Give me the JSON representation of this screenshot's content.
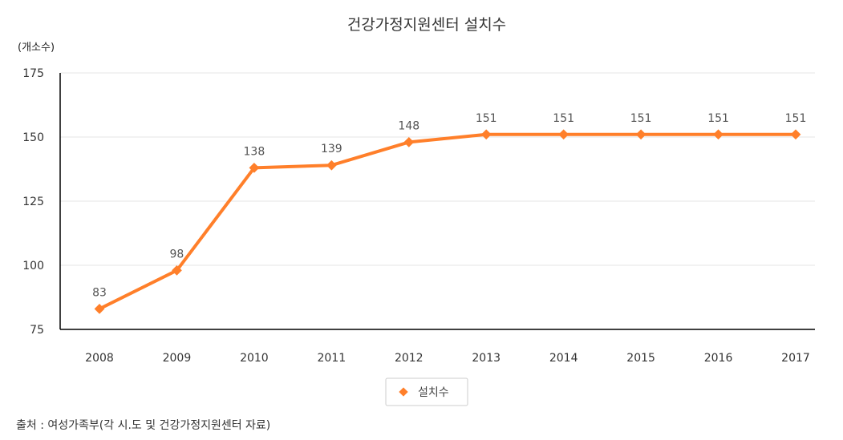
{
  "colors": {
    "series": "#ff7f2a"
  },
  "source_note": "출처 : 여성가족부(각 시.도 및 건강가정지원센터 자료)",
  "chart_data": {
    "type": "line",
    "title": "건강가정지원센터 설치수",
    "unit_label": "(개소수)",
    "xlabel": "",
    "ylabel": "",
    "x": [
      "2008",
      "2009",
      "2010",
      "2011",
      "2012",
      "2013",
      "2014",
      "2015",
      "2016",
      "2017"
    ],
    "series": [
      {
        "name": "설치수",
        "values": [
          83,
          98,
          138,
          139,
          148,
          151,
          151,
          151,
          151,
          151
        ],
        "marker": "diamond"
      }
    ],
    "ylim": [
      75,
      175
    ],
    "yticks": [
      75,
      100,
      125,
      150,
      175
    ],
    "grid": true,
    "data_labels": true,
    "legend": "bottom-center"
  }
}
